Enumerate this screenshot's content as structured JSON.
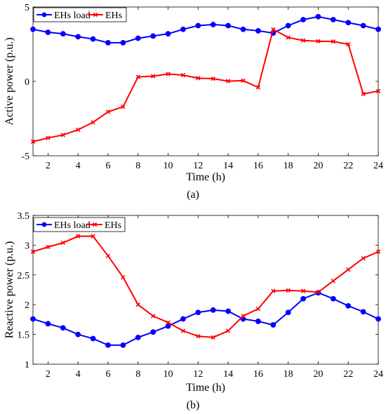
{
  "panels": [
    {
      "caption": "(a)",
      "chart_data": {
        "type": "line",
        "xlabel": "Time (h)",
        "ylabel": "Active power (p.u.)",
        "xlim": [
          1,
          24
        ],
        "ylim": [
          -5,
          5
        ],
        "xticks": [
          2,
          4,
          6,
          8,
          10,
          12,
          14,
          16,
          18,
          20,
          22,
          24
        ],
        "yticks": [
          -5,
          0,
          5
        ],
        "grid": false,
        "legend_position": "top-left",
        "x": [
          1,
          2,
          3,
          4,
          5,
          6,
          7,
          8,
          9,
          10,
          11,
          12,
          13,
          14,
          15,
          16,
          17,
          18,
          19,
          20,
          21,
          22,
          23,
          24
        ],
        "series": [
          {
            "name": "EHs load",
            "color": "#0000ff",
            "marker": "circle",
            "values": [
              3.5,
              3.3,
              3.2,
              3.0,
              2.85,
              2.6,
              2.6,
              2.9,
              3.05,
              3.2,
              3.5,
              3.75,
              3.82,
              3.75,
              3.5,
              3.4,
              3.25,
              3.75,
              4.15,
              4.35,
              4.15,
              3.95,
              3.75,
              3.5
            ]
          },
          {
            "name": "EHs",
            "color": "#ff0000",
            "marker": "x",
            "values": [
              -4.05,
              -3.8,
              -3.6,
              -3.25,
              -2.75,
              -2.05,
              -1.7,
              0.3,
              0.35,
              0.5,
              0.42,
              0.22,
              0.18,
              0.02,
              0.05,
              -0.4,
              3.5,
              2.95,
              2.75,
              2.7,
              2.68,
              2.5,
              -0.85,
              -0.65
            ]
          }
        ]
      }
    },
    {
      "caption": "(b)",
      "chart_data": {
        "type": "line",
        "xlabel": "Time (h)",
        "ylabel": "Reactive power (p.u.)",
        "xlim": [
          1,
          24
        ],
        "ylim": [
          1,
          3.5
        ],
        "xticks": [
          2,
          4,
          6,
          8,
          10,
          12,
          14,
          16,
          18,
          20,
          22,
          24
        ],
        "yticks": [
          1,
          1.5,
          2,
          2.5,
          3,
          3.5
        ],
        "grid": false,
        "legend_position": "top-left",
        "x": [
          1,
          2,
          3,
          4,
          5,
          6,
          7,
          8,
          9,
          10,
          11,
          12,
          13,
          14,
          15,
          16,
          17,
          18,
          19,
          20,
          21,
          22,
          23,
          24
        ],
        "series": [
          {
            "name": "EHs load",
            "color": "#0000ff",
            "marker": "circle",
            "values": [
              1.76,
              1.68,
              1.61,
              1.5,
              1.43,
              1.32,
              1.32,
              1.45,
              1.54,
              1.64,
              1.76,
              1.87,
              1.91,
              1.89,
              1.76,
              1.72,
              1.66,
              1.87,
              2.1,
              2.2,
              2.1,
              1.98,
              1.88,
              1.76
            ]
          },
          {
            "name": "EHs",
            "color": "#ff0000",
            "marker": "x",
            "values": [
              2.89,
              2.97,
              3.04,
              3.15,
              3.15,
              2.82,
              2.46,
              2.0,
              1.81,
              1.7,
              1.56,
              1.47,
              1.45,
              1.56,
              1.81,
              1.93,
              2.23,
              2.24,
              2.23,
              2.21,
              2.4,
              2.59,
              2.78,
              2.89
            ]
          }
        ]
      }
    }
  ]
}
